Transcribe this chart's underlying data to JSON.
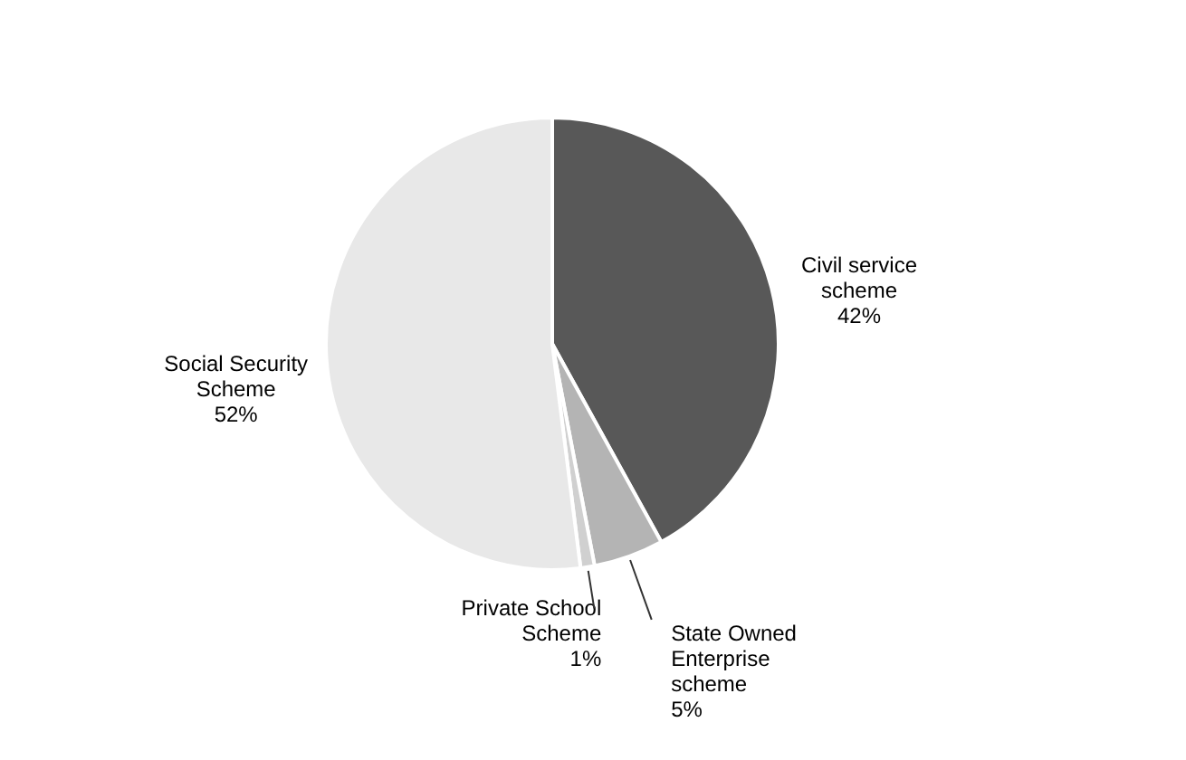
{
  "chart_data": {
    "type": "pie",
    "categories": [
      "Civil service\nscheme",
      "State Owned\nEnterprise\nscheme",
      "Private School\nScheme",
      "Social Security\nScheme"
    ],
    "values": [
      42,
      5,
      1,
      52
    ],
    "value_labels": [
      "42%",
      "5%",
      "1%",
      "52%"
    ],
    "colors": [
      "#585858",
      "#b4b4b4",
      "#d0d0d0",
      "#e8e8e8"
    ],
    "legend": false
  }
}
